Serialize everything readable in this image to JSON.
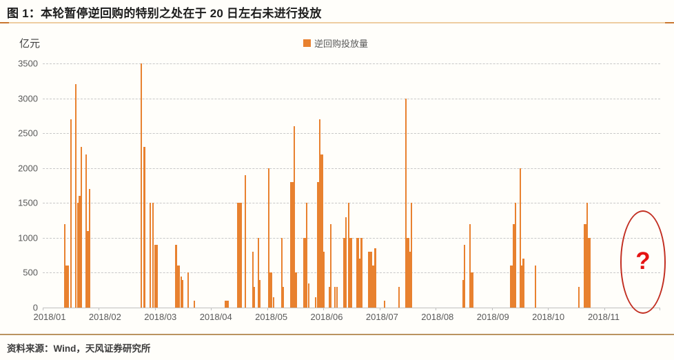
{
  "header": {
    "title": "图 1：本轮暂停逆回购的特别之处在于 20 日左右未进行投放"
  },
  "footer": {
    "source": "资料来源：Wind，天风证券研究所"
  },
  "colors": {
    "bar_orange": "#e8812f",
    "title_rule_tan": "#eecda1",
    "title_rule_ends": "#c9762e",
    "gridline_gray": "#c7c7c7",
    "axis_text_gray": "#595959",
    "annotation_red": "#c22f22",
    "question_mark_red": "#e41313",
    "source_rule_brown": "#ba9360"
  },
  "chart_data": {
    "type": "bar",
    "title": "图 1：本轮暂停逆回购的特别之处在于 20 日左右未进行投放",
    "series_name": "逆回购投放量",
    "ylabel": "亿元",
    "xlabel": "",
    "ylim": [
      0,
      3500
    ],
    "y_ticks": [
      3500,
      3000,
      2500,
      2000,
      1500,
      1000,
      500,
      0
    ],
    "x_tick_labels": [
      "2018/01",
      "2018/02",
      "2018/03",
      "2018/04",
      "2018/05",
      "2018/06",
      "2018/07",
      "2018/08",
      "2018/09",
      "2018/10",
      "2018/11"
    ],
    "grid": "horizontal dashed",
    "legend_position": "top-center",
    "annotation": {
      "text": "?",
      "shape": "red-ellipse",
      "x_pct_center": 97.0
    },
    "bars": [
      {
        "d": "2018-01-24",
        "v": 1200,
        "x": 3.6,
        "w": 2
      },
      {
        "d": "2018-01-25",
        "v": 600,
        "x": 3.95,
        "w": 5
      },
      {
        "d": "2018-01-26",
        "v": 2700,
        "x": 4.6,
        "w": 2
      },
      {
        "d": "2018-01-29",
        "v": 3200,
        "x": 5.4,
        "w": 2
      },
      {
        "d": "2018-01-30",
        "v": 1500,
        "x": 5.75,
        "w": 3
      },
      {
        "d": "2018-01-31",
        "v": 1600,
        "x": 6.1,
        "w": 5
      },
      {
        "d": "2018-02-01",
        "v": 2300,
        "x": 6.3,
        "w": 2
      },
      {
        "d": "2018-02-05",
        "v": 2200,
        "x": 7.0,
        "w": 2
      },
      {
        "d": "2018-02-06",
        "v": 1100,
        "x": 7.35,
        "w": 5
      },
      {
        "d": "2018-02-07",
        "v": 1700,
        "x": 7.6,
        "w": 2
      },
      {
        "d": "2018-03-05",
        "v": 3500,
        "x": 15.95,
        "w": 2
      },
      {
        "d": "2018-03-07",
        "v": 2300,
        "x": 16.5,
        "w": 3
      },
      {
        "d": "2018-03-09",
        "v": 1500,
        "x": 17.4,
        "w": 2
      },
      {
        "d": "2018-03-12",
        "v": 1500,
        "x": 17.85,
        "w": 2
      },
      {
        "d": "2018-03-13",
        "v": 900,
        "x": 18.4,
        "w": 5
      },
      {
        "d": "2018-03-22",
        "v": 900,
        "x": 21.55,
        "w": 3
      },
      {
        "d": "2018-03-26",
        "v": 600,
        "x": 21.95,
        "w": 4
      },
      {
        "d": "2018-03-27",
        "v": 450,
        "x": 22.4,
        "w": 2
      },
      {
        "d": "2018-03-28",
        "v": 400,
        "x": 22.7,
        "w": 2
      },
      {
        "d": "2018-03-30",
        "v": 500,
        "x": 23.55,
        "w": 2
      },
      {
        "d": "2018-04-03",
        "v": 100,
        "x": 24.55,
        "w": 2
      },
      {
        "d": "2018-04-18",
        "v": 100,
        "x": 29.6,
        "w": 3
      },
      {
        "d": "2018-04-19",
        "v": 100,
        "x": 30.0,
        "w": 3
      },
      {
        "d": "2018-04-25",
        "v": 1500,
        "x": 31.7,
        "w": 5
      },
      {
        "d": "2018-04-26",
        "v": 1500,
        "x": 32.15,
        "w": 2
      },
      {
        "d": "2018-04-28",
        "v": 1900,
        "x": 32.8,
        "w": 2
      },
      {
        "d": "2018-05-04",
        "v": 800,
        "x": 34.05,
        "w": 2
      },
      {
        "d": "2018-05-07",
        "v": 300,
        "x": 34.3,
        "w": 2
      },
      {
        "d": "2018-05-09",
        "v": 1000,
        "x": 34.95,
        "w": 2
      },
      {
        "d": "2018-05-10",
        "v": 400,
        "x": 35.2,
        "w": 2
      },
      {
        "d": "2018-05-14",
        "v": 2000,
        "x": 36.6,
        "w": 2
      },
      {
        "d": "2018-05-15",
        "v": 500,
        "x": 36.9,
        "w": 5
      },
      {
        "d": "2018-05-17",
        "v": 150,
        "x": 37.4,
        "w": 2
      },
      {
        "d": "2018-05-21",
        "v": 1000,
        "x": 38.75,
        "w": 2
      },
      {
        "d": "2018-05-22",
        "v": 300,
        "x": 39.0,
        "w": 2
      },
      {
        "d": "2018-05-28",
        "v": 1800,
        "x": 40.4,
        "w": 5
      },
      {
        "d": "2018-05-29",
        "v": 2600,
        "x": 40.75,
        "w": 2
      },
      {
        "d": "2018-05-30",
        "v": 500,
        "x": 41.05,
        "w": 3
      },
      {
        "d": "2018-06-04",
        "v": 1000,
        "x": 42.5,
        "w": 5
      },
      {
        "d": "2018-06-05",
        "v": 1500,
        "x": 42.75,
        "w": 2
      },
      {
        "d": "2018-06-06",
        "v": 350,
        "x": 43.05,
        "w": 2
      },
      {
        "d": "2018-06-08",
        "v": 150,
        "x": 44.25,
        "w": 2
      },
      {
        "d": "2018-06-11",
        "v": 1800,
        "x": 44.6,
        "w": 3
      },
      {
        "d": "2018-06-12",
        "v": 2700,
        "x": 44.85,
        "w": 2
      },
      {
        "d": "2018-06-13",
        "v": 2200,
        "x": 45.1,
        "w": 5
      },
      {
        "d": "2018-06-14",
        "v": 800,
        "x": 45.5,
        "w": 2
      },
      {
        "d": "2018-06-19",
        "v": 300,
        "x": 46.4,
        "w": 2
      },
      {
        "d": "2018-06-20",
        "v": 1200,
        "x": 46.7,
        "w": 2
      },
      {
        "d": "2018-06-22",
        "v": 300,
        "x": 47.3,
        "w": 2
      },
      {
        "d": "2018-06-23",
        "v": 300,
        "x": 47.65,
        "w": 2
      },
      {
        "d": "2018-06-25",
        "v": 1000,
        "x": 48.9,
        "w": 5
      },
      {
        "d": "2018-06-26",
        "v": 1300,
        "x": 49.15,
        "w": 2
      },
      {
        "d": "2018-06-27",
        "v": 1500,
        "x": 49.55,
        "w": 2
      },
      {
        "d": "2018-06-28",
        "v": 1000,
        "x": 49.8,
        "w": 5
      },
      {
        "d": "2018-07-02",
        "v": 1000,
        "x": 50.95,
        "w": 4
      },
      {
        "d": "2018-07-03",
        "v": 700,
        "x": 51.3,
        "w": 3
      },
      {
        "d": "2018-07-04",
        "v": 1000,
        "x": 51.6,
        "w": 3
      },
      {
        "d": "2018-07-09",
        "v": 800,
        "x": 52.9,
        "w": 3
      },
      {
        "d": "2018-07-10",
        "v": 800,
        "x": 53.2,
        "w": 3
      },
      {
        "d": "2018-07-11",
        "v": 600,
        "x": 53.5,
        "w": 3
      },
      {
        "d": "2018-07-12",
        "v": 850,
        "x": 53.8,
        "w": 3
      },
      {
        "d": "2018-07-17",
        "v": 100,
        "x": 55.35,
        "w": 2
      },
      {
        "d": "2018-07-24",
        "v": 300,
        "x": 57.7,
        "w": 2
      },
      {
        "d": "2018-07-27",
        "v": 3000,
        "x": 58.8,
        "w": 2
      },
      {
        "d": "2018-07-30",
        "v": 1000,
        "x": 59.1,
        "w": 5
      },
      {
        "d": "2018-07-31",
        "v": 800,
        "x": 59.45,
        "w": 3
      },
      {
        "d": "2018-08-01",
        "v": 1500,
        "x": 59.75,
        "w": 2
      },
      {
        "d": "2018-08-28",
        "v": 400,
        "x": 68.1,
        "w": 2
      },
      {
        "d": "2018-08-29",
        "v": 900,
        "x": 68.35,
        "w": 2
      },
      {
        "d": "2018-08-31",
        "v": 1200,
        "x": 69.2,
        "w": 2
      },
      {
        "d": "2018-09-03",
        "v": 500,
        "x": 69.45,
        "w": 5
      },
      {
        "d": "2018-09-25",
        "v": 600,
        "x": 76.0,
        "w": 5
      },
      {
        "d": "2018-09-26",
        "v": 1200,
        "x": 76.35,
        "w": 5
      },
      {
        "d": "2018-09-27",
        "v": 1500,
        "x": 76.6,
        "w": 2
      },
      {
        "d": "2018-09-28",
        "v": 2000,
        "x": 77.35,
        "w": 2
      },
      {
        "d": "2018-09-29",
        "v": 600,
        "x": 77.6,
        "w": 3
      },
      {
        "d": "2018-09-30",
        "v": 700,
        "x": 77.85,
        "w": 3
      },
      {
        "d": "2018-10-08",
        "v": 600,
        "x": 79.8,
        "w": 2
      },
      {
        "d": "2018-10-29",
        "v": 300,
        "x": 86.85,
        "w": 2
      },
      {
        "d": "2018-11-01",
        "v": 1200,
        "x": 87.85,
        "w": 5
      },
      {
        "d": "2018-11-02",
        "v": 1500,
        "x": 88.2,
        "w": 2
      },
      {
        "d": "2018-11-05",
        "v": 1000,
        "x": 88.5,
        "w": 5
      }
    ]
  }
}
